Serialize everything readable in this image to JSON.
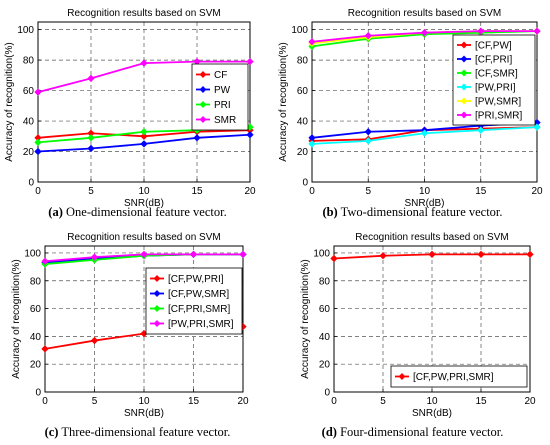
{
  "captions": [
    {
      "letter": "(a)",
      "text": " One-dimensional feature vector."
    },
    {
      "letter": "(b)",
      "text": " Two-dimensional feature vector."
    },
    {
      "letter": "(c)",
      "text": " Three-dimensional feature vector."
    },
    {
      "letter": "(d)",
      "text": " Four-dimensional feature vector."
    }
  ],
  "chart_data": [
    {
      "type": "line",
      "title": "Recognition results based on SVM",
      "xlabel": "SNR(dB)",
      "ylabel": "Accuracy of recognition(%)",
      "x": [
        0,
        5,
        10,
        15,
        20
      ],
      "xticks": [
        0,
        5,
        10,
        15,
        20
      ],
      "yticks": [
        0,
        20,
        40,
        60,
        80,
        100
      ],
      "xlim": [
        0,
        20
      ],
      "ylim": [
        0,
        105
      ],
      "grid": true,
      "legend": "right",
      "series": [
        {
          "name": "CF",
          "color": "#ff0000",
          "values": [
            29,
            32,
            30,
            33,
            34
          ]
        },
        {
          "name": "PW",
          "color": "#0000ff",
          "values": [
            20,
            22,
            25,
            29,
            31
          ]
        },
        {
          "name": "PRI",
          "color": "#00ff00",
          "values": [
            26,
            29,
            33,
            34,
            36
          ]
        },
        {
          "name": "SMR",
          "color": "#ff00ff",
          "values": [
            59,
            68,
            78,
            79,
            79
          ]
        }
      ]
    },
    {
      "type": "line",
      "title": "Recognition results based on SVM",
      "xlabel": "SNR(dB)",
      "ylabel": "Accuracy of recognition(%)",
      "x": [
        0,
        5,
        10,
        15,
        20
      ],
      "xticks": [
        0,
        5,
        10,
        15,
        20
      ],
      "yticks": [
        0,
        20,
        40,
        60,
        80,
        100
      ],
      "xlim": [
        0,
        20
      ],
      "ylim": [
        0,
        105
      ],
      "grid": true,
      "legend": "top-right",
      "series": [
        {
          "name": "[CF,PW]",
          "color": "#ff0000",
          "values": [
            27,
            28,
            34,
            35,
            36
          ]
        },
        {
          "name": "[CF,PRI]",
          "color": "#0000ff",
          "values": [
            29,
            33,
            34,
            37,
            39
          ]
        },
        {
          "name": "[CF,SMR]",
          "color": "#00ff00",
          "values": [
            89,
            94,
            97,
            98,
            99
          ]
        },
        {
          "name": "[PW,PRI]",
          "color": "#00ffff",
          "values": [
            25,
            27,
            32,
            34,
            36
          ]
        },
        {
          "name": "[PW,SMR]",
          "color": "#ffff00",
          "values": [
            91,
            95,
            98,
            99,
            99
          ]
        },
        {
          "name": "[PRI,SMR]",
          "color": "#ff00ff",
          "values": [
            92,
            96,
            98,
            99,
            99
          ]
        }
      ]
    },
    {
      "type": "line",
      "title": "Recognition results based on SVM",
      "xlabel": "SNR(dB)",
      "ylabel": "Accuracy of recognition(%)",
      "x": [
        0,
        5,
        10,
        15,
        20
      ],
      "xticks": [
        0,
        5,
        10,
        15,
        20
      ],
      "yticks": [
        0,
        20,
        40,
        60,
        80,
        100
      ],
      "xlim": [
        0,
        20
      ],
      "ylim": [
        0,
        105
      ],
      "grid": true,
      "legend": "right",
      "series": [
        {
          "name": "[CF,PW,PRI]",
          "color": "#ff0000",
          "values": [
            31,
            37,
            42,
            45,
            47
          ]
        },
        {
          "name": "[CF,PW,SMR]",
          "color": "#0000ff",
          "values": [
            93,
            96,
            98,
            99,
            99
          ]
        },
        {
          "name": "[CF,PRI,SMR]",
          "color": "#00ff00",
          "values": [
            92,
            95,
            98,
            99,
            99
          ]
        },
        {
          "name": "[PW,PRI,SMR]",
          "color": "#ff00ff",
          "values": [
            94,
            97,
            99,
            99,
            99
          ]
        }
      ]
    },
    {
      "type": "line",
      "title": "Recognition results based on SVM",
      "xlabel": "SNR(dB)",
      "ylabel": "Accuracy of recognition(%)",
      "x": [
        0,
        5,
        10,
        15,
        20
      ],
      "xticks": [
        0,
        5,
        10,
        15,
        20
      ],
      "yticks": [
        0,
        20,
        40,
        60,
        80,
        100
      ],
      "xlim": [
        0,
        20
      ],
      "ylim": [
        0,
        105
      ],
      "grid": true,
      "legend": "bottom-right",
      "series": [
        {
          "name": "[CF,PW,PRI,SMR]",
          "color": "#ff0000",
          "values": [
            96,
            98,
            99,
            99,
            99
          ]
        }
      ]
    }
  ]
}
